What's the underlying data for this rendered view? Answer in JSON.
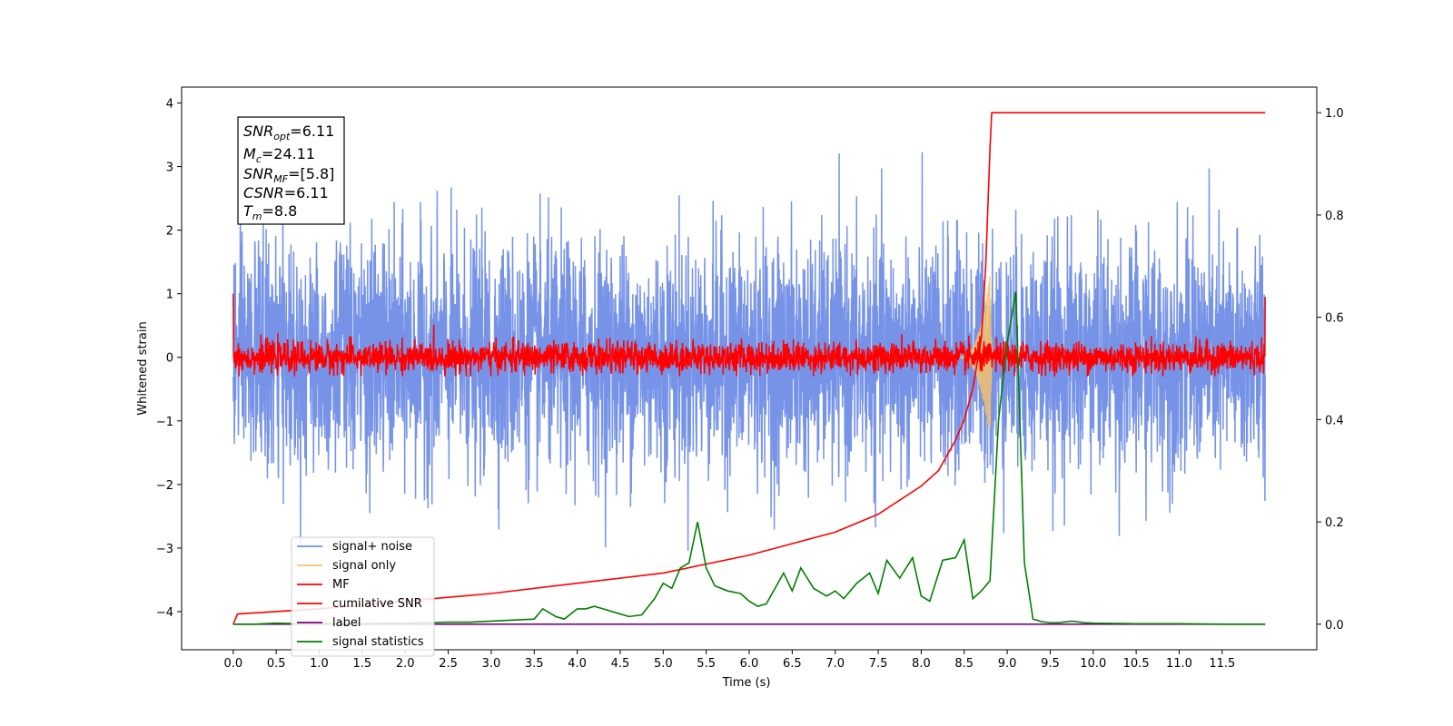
{
  "chart_data": {
    "type": "line",
    "xlabel": "Time (s)",
    "ylabel": "Whitened strain",
    "xlim": [
      -0.6,
      12.6
    ],
    "ylim": [
      -4.6,
      4.25
    ],
    "ylim_right": [
      -0.05,
      1.05
    ],
    "x_ticks": [
      "0.0",
      "0.5",
      "1.0",
      "1.5",
      "2.0",
      "2.5",
      "3.0",
      "3.5",
      "4.0",
      "4.5",
      "5.0",
      "5.5",
      "6.0",
      "6.5",
      "7.0",
      "7.5",
      "8.0",
      "8.5",
      "9.0",
      "9.5",
      "10.0",
      "10.5",
      "11.0",
      "11.5"
    ],
    "y_ticks": [
      "4",
      "3",
      "2",
      "1",
      "0",
      "−1",
      "−2",
      "−3",
      "−4"
    ],
    "y_ticks_right": [
      "1.0",
      "0.8",
      "0.6",
      "0.4",
      "0.2",
      "0.0"
    ],
    "info_box": {
      "snr_opt_base": "SNR",
      "snr_opt_sub": "opt",
      "snr_opt_value": "=6.11",
      "mc_base": "M",
      "mc_sub": "c",
      "mc_value": "=24.11",
      "snr_mf_base": "SNR",
      "snr_mf_sub": "MF",
      "snr_mf_value": "=[5.8]",
      "csnr_base": "CSNR",
      "csnr_value": "=6.11",
      "tm_base": "T",
      "tm_sub": "m",
      "tm_value": "=8.8"
    },
    "legend": {
      "placement": "lower-left",
      "entries": [
        {
          "label": "signal+ noise",
          "color": "#6f8de6"
        },
        {
          "label": "signal only",
          "color": "#f5c26b"
        },
        {
          "label": "MF",
          "color": "#ff0000"
        },
        {
          "label": "cumilative SNR",
          "color": "#ff0000"
        },
        {
          "label": "label",
          "color": "#800080"
        },
        {
          "label": "signal statistics",
          "color": "#008000"
        }
      ]
    },
    "series": [
      {
        "name": "signal+ noise",
        "axis": "left",
        "x_range": [
          0.0,
          12.0
        ],
        "noise_std": 0.9,
        "envelope": [
          -3.9,
          3.85
        ]
      },
      {
        "name": "signal only",
        "axis": "left",
        "chirp_start": 8.4,
        "merger": 8.8,
        "peak_amplitude": 1.3
      },
      {
        "name": "MF",
        "axis": "left",
        "x_range": [
          0.0,
          12.0
        ],
        "noise_std": 0.12,
        "envelope": [
          -0.3,
          0.6
        ]
      },
      {
        "name": "cumilative SNR",
        "axis": "right",
        "x": [
          0.0,
          0.05,
          1.0,
          2.0,
          3.0,
          4.0,
          5.0,
          6.0,
          7.0,
          7.5,
          8.0,
          8.2,
          8.4,
          8.5,
          8.6,
          8.7,
          8.75,
          8.8,
          8.82,
          8.9,
          10.0,
          11.0,
          12.0
        ],
        "y": [
          0.0,
          0.02,
          0.03,
          0.045,
          0.06,
          0.08,
          0.1,
          0.135,
          0.18,
          0.215,
          0.27,
          0.3,
          0.36,
          0.4,
          0.46,
          0.56,
          0.7,
          0.93,
          1.0,
          1.0,
          1.0,
          1.0,
          1.0
        ]
      },
      {
        "name": "label",
        "axis": "right",
        "x": [
          0.0,
          12.0
        ],
        "y": [
          0.0,
          0.0
        ]
      },
      {
        "name": "signal statistics",
        "axis": "right",
        "x": [
          0.0,
          0.25,
          0.5,
          0.75,
          1.0,
          1.25,
          1.5,
          1.75,
          2.0,
          2.25,
          2.5,
          2.75,
          3.0,
          3.25,
          3.5,
          3.6,
          3.75,
          3.85,
          4.0,
          4.1,
          4.2,
          4.3,
          4.5,
          4.6,
          4.75,
          4.9,
          5.0,
          5.1,
          5.2,
          5.3,
          5.4,
          5.5,
          5.6,
          5.75,
          5.9,
          6.0,
          6.1,
          6.2,
          6.3,
          6.4,
          6.5,
          6.6,
          6.75,
          6.9,
          7.0,
          7.1,
          7.25,
          7.4,
          7.5,
          7.6,
          7.75,
          7.9,
          8.0,
          8.1,
          8.25,
          8.4,
          8.5,
          8.6,
          8.7,
          8.8,
          8.9,
          9.0,
          9.1,
          9.2,
          9.3,
          9.4,
          9.5,
          9.6,
          9.75,
          9.9,
          10.0,
          10.5,
          11.0,
          11.5,
          12.0
        ],
        "y": [
          0.0,
          0.0,
          0.002,
          0.001,
          0.002,
          0.001,
          0.001,
          0.002,
          0.002,
          0.003,
          0.004,
          0.004,
          0.006,
          0.008,
          0.01,
          0.03,
          0.015,
          0.01,
          0.03,
          0.03,
          0.035,
          0.03,
          0.02,
          0.015,
          0.018,
          0.05,
          0.08,
          0.07,
          0.11,
          0.12,
          0.2,
          0.11,
          0.075,
          0.065,
          0.06,
          0.045,
          0.035,
          0.04,
          0.07,
          0.1,
          0.065,
          0.11,
          0.07,
          0.055,
          0.065,
          0.05,
          0.08,
          0.1,
          0.06,
          0.125,
          0.09,
          0.13,
          0.055,
          0.045,
          0.125,
          0.13,
          0.165,
          0.05,
          0.065,
          0.085,
          0.4,
          0.55,
          0.65,
          0.12,
          0.01,
          0.005,
          0.003,
          0.003,
          0.006,
          0.003,
          0.002,
          0.001,
          0.001,
          0.0,
          0.0
        ]
      }
    ]
  }
}
